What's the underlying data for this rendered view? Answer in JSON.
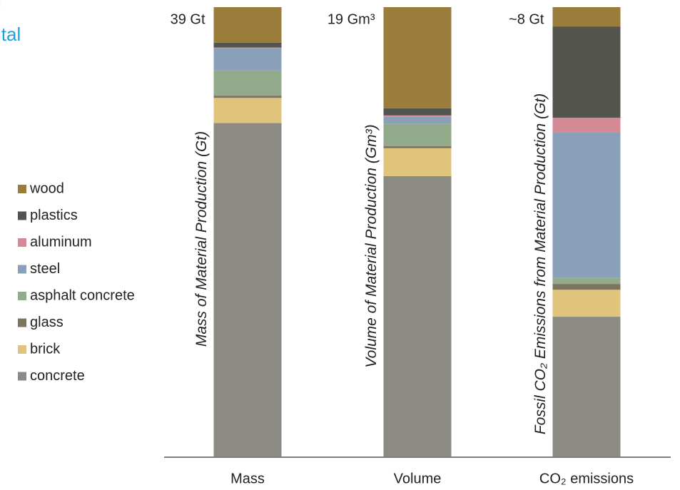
{
  "slide_fragments": [
    "l",
    "ital"
  ],
  "chart_data": {
    "type": "stacked_bar",
    "categories": [
      "Mass",
      "Volume",
      "CO₂ emissions"
    ],
    "totals": [
      "39 Gt",
      "19 Gm³",
      "~8 Gt"
    ],
    "axis_labels": [
      "Mass of Material Production (Gt)",
      "Volume of Material Production (Gm³)",
      "Fossil CO₂ Emissions from Material Production (Gt)"
    ],
    "ylim": [
      0,
      100
    ],
    "series": [
      {
        "name": "concrete",
        "color": "#8b8b84",
        "values": [
          74.2,
          62.4,
          31.1
        ]
      },
      {
        "name": "brick",
        "color": "#e0c47c",
        "values": [
          5.6,
          6.2,
          6.0
        ]
      },
      {
        "name": "glass",
        "color": "#7e7560",
        "values": [
          0.5,
          0.5,
          1.3
        ]
      },
      {
        "name": "asphalt concrete",
        "color": "#93ab8a",
        "values": [
          5.6,
          4.9,
          1.4
        ]
      },
      {
        "name": "steel",
        "color": "#8aa0b8",
        "values": [
          4.9,
          1.6,
          32.4
        ]
      },
      {
        "name": "aluminum",
        "color": "#d48a96",
        "values": [
          0.2,
          0.3,
          3.2
        ]
      },
      {
        "name": "plastics",
        "color": "#54544e",
        "values": [
          1.1,
          1.6,
          20.3
        ]
      },
      {
        "name": "wood",
        "color": "#9a7d3a",
        "values": [
          7.9,
          22.5,
          4.3
        ]
      }
    ]
  }
}
